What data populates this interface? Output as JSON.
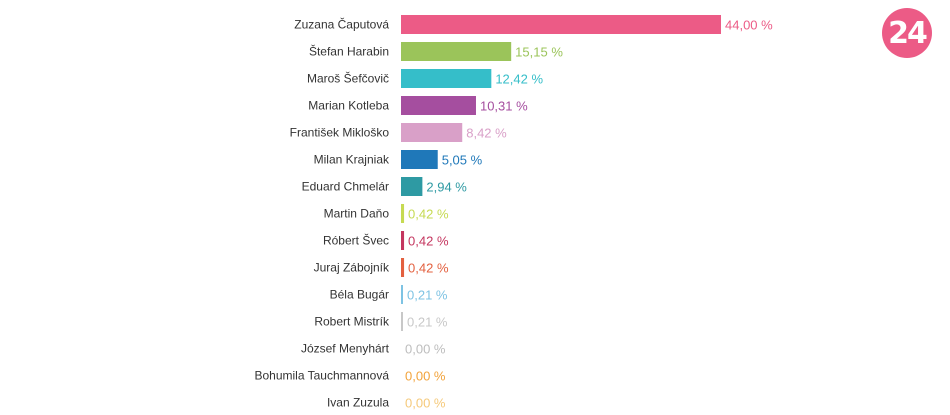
{
  "logo": {
    "text": "24",
    "color": "#ec5b86"
  },
  "chart_data": {
    "type": "bar",
    "orientation": "horizontal",
    "title": "",
    "xlabel": "",
    "ylabel": "",
    "xlim": [
      0,
      44
    ],
    "grid": false,
    "legend": "none",
    "categories": [
      "Zuzana Čaputová",
      "Štefan Harabin",
      "Maroš Šefčovič",
      "Marian Kotleba",
      "František Mikloško",
      "Milan Krajniak",
      "Eduard Chmelár",
      "Martin Daňo",
      "Róbert Švec",
      "Juraj Zábojník",
      "Béla Bugár",
      "Robert Mistrík",
      "József Menyhárt",
      "Bohumila Tauchmannová",
      "Ivan Zuzula"
    ],
    "values": [
      44.0,
      15.15,
      12.42,
      10.31,
      8.42,
      5.05,
      2.94,
      0.42,
      0.42,
      0.42,
      0.21,
      0.21,
      0.0,
      0.0,
      0.0
    ],
    "value_labels": [
      "44,00 %",
      "15,15 %",
      "12,42 %",
      "10,31 %",
      "8,42 %",
      "5,05 %",
      "2,94 %",
      "0,42 %",
      "0,42 %",
      "0,42 %",
      "0,21 %",
      "0,21 %",
      "0,00 %",
      "0,00 %",
      "0,00 %"
    ],
    "colors": [
      "#ec5b86",
      "#9bc45a",
      "#35bec9",
      "#a54e9f",
      "#d9a0c8",
      "#1f78b9",
      "#2e9aa3",
      "#c6da52",
      "#c4365f",
      "#e3603f",
      "#7ec3e3",
      "#c8c8c8",
      "#bdbdbd",
      "#f2a33b",
      "#f5c97a"
    ]
  }
}
